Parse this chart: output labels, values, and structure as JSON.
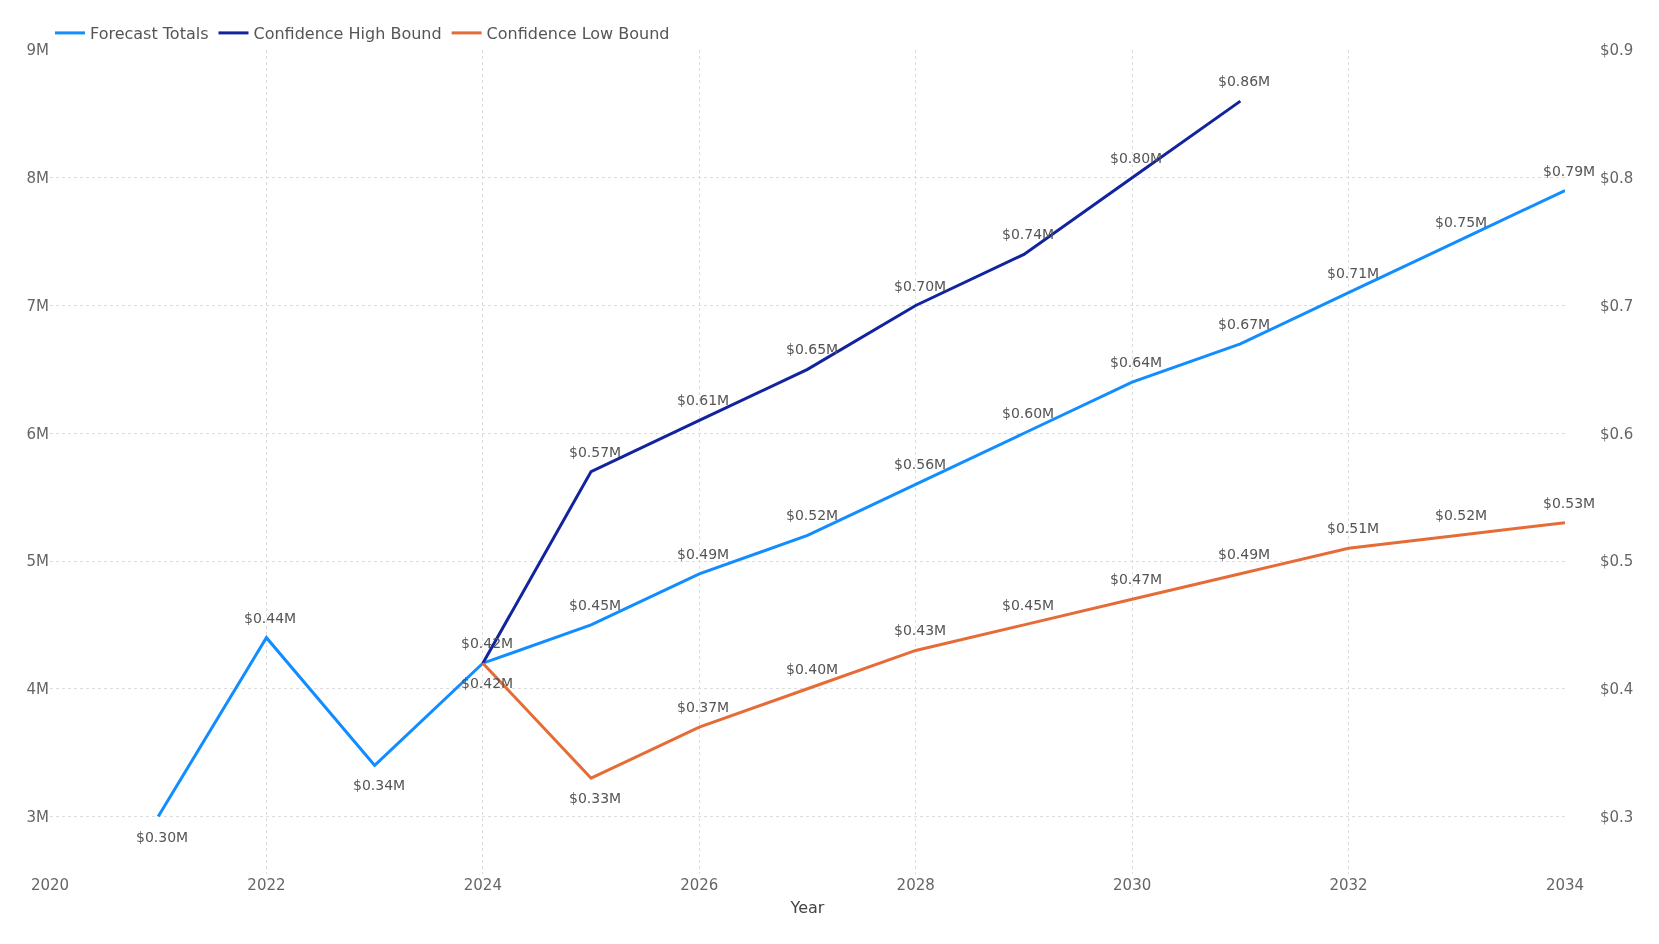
{
  "chart_data": {
    "type": "line",
    "xlabel": "Year",
    "xlim": [
      2020,
      2034
    ],
    "xticks": [
      2020,
      2022,
      2024,
      2026,
      2028,
      2030,
      2032,
      2034
    ],
    "ylim": [
      2.55,
      9
    ],
    "yticks": [
      {
        "value": 3,
        "label": "3M"
      },
      {
        "value": 4,
        "label": "4M"
      },
      {
        "value": 5,
        "label": "5M"
      },
      {
        "value": 6,
        "label": "6M"
      },
      {
        "value": 7,
        "label": "7M"
      },
      {
        "value": 8,
        "label": "8M"
      },
      {
        "value": 9,
        "label": "9M"
      }
    ],
    "y2lim": [
      0.255,
      0.9
    ],
    "y2ticks": [
      {
        "value": 0.3,
        "label": "$0.3"
      },
      {
        "value": 0.4,
        "label": "$0.4"
      },
      {
        "value": 0.5,
        "label": "$0.5"
      },
      {
        "value": 0.6,
        "label": "$0.6"
      },
      {
        "value": 0.7,
        "label": "$0.7"
      },
      {
        "value": 0.8,
        "label": "$0.8"
      },
      {
        "value": 0.9,
        "label": "$0.9"
      }
    ],
    "grid": true,
    "legend": "top left",
    "marker": "none",
    "line_style": "solid",
    "series": [
      {
        "name": "Forecast Totals",
        "color": "#118dff",
        "axis": "y2",
        "x": [
          2021,
          2022,
          2023,
          2024,
          2025,
          2026,
          2027,
          2028,
          2029,
          2030,
          2031,
          2032,
          2033,
          2034
        ],
        "values": [
          0.3,
          0.44,
          0.34,
          0.42,
          0.45,
          0.49,
          0.52,
          0.56,
          0.6,
          0.64,
          0.67,
          0.71,
          0.75,
          0.79
        ],
        "value_labels": [
          "$0.30M",
          "$0.44M",
          "$0.34M",
          "$0.42M",
          "$0.45M",
          "$0.49M",
          "$0.52M",
          "$0.56M",
          "$0.60M",
          "$0.64M",
          "$0.67M",
          "$0.71M",
          "$0.75M",
          "$0.79M"
        ]
      },
      {
        "name": "Confidence High Bound",
        "color": "#12239e",
        "axis": "y2",
        "x": [
          2024,
          2025,
          2026,
          2027,
          2028,
          2029,
          2030,
          2031
        ],
        "values": [
          0.42,
          0.57,
          0.61,
          0.65,
          0.7,
          0.74,
          0.8,
          0.86
        ],
        "value_labels": [
          null,
          "$0.57M",
          "$0.61M",
          "$0.65M",
          "$0.70M",
          "$0.74M",
          "$0.80M",
          "$0.86M"
        ]
      },
      {
        "name": "Confidence Low Bound",
        "color": "#e66c37",
        "axis": "y2",
        "x": [
          2024,
          2025,
          2026,
          2027,
          2028,
          2029,
          2030,
          2031,
          2032,
          2033,
          2034
        ],
        "values": [
          0.42,
          0.33,
          0.37,
          0.4,
          0.43,
          0.45,
          0.47,
          0.49,
          0.51,
          0.52,
          0.53
        ],
        "value_labels": [
          "$0.42M",
          "$0.33M",
          "$0.37M",
          "$0.40M",
          "$0.43M",
          "$0.45M",
          "$0.47M",
          "$0.49M",
          "$0.51M",
          "$0.52M",
          "$0.53M"
        ]
      }
    ]
  }
}
